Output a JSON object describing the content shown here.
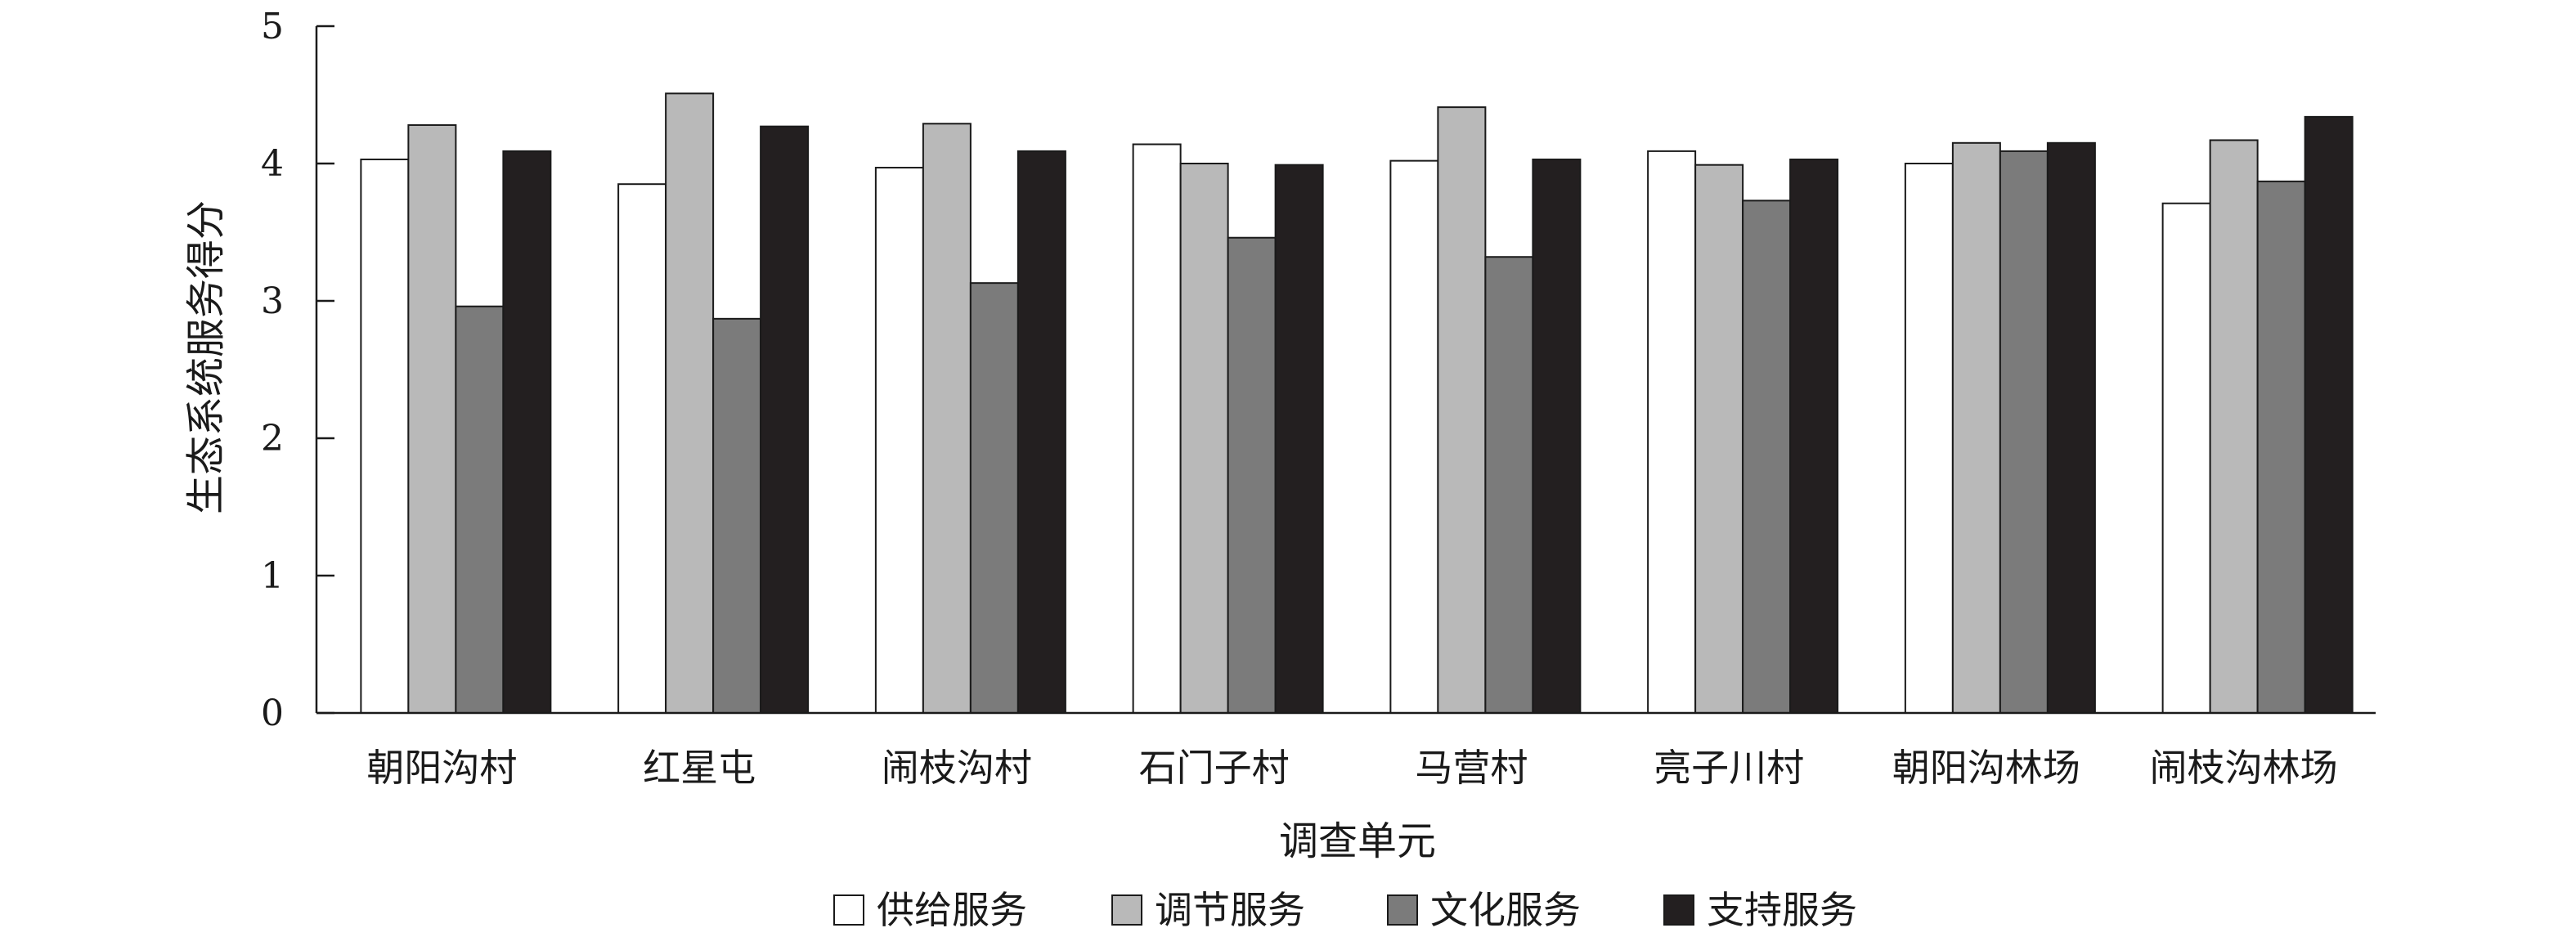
{
  "chart_data": {
    "type": "bar",
    "xlabel": "调查单元",
    "ylabel": "生态系统服务得分",
    "ylim": [
      0,
      5
    ],
    "yticks": [
      0,
      1,
      2,
      3,
      4,
      5
    ],
    "categories": [
      "朝阳沟村",
      "红星屯",
      "闹枝沟村",
      "石门子村",
      "马营村",
      "亮子川村",
      "朝阳沟林场",
      "闹枝沟林场"
    ],
    "series": [
      {
        "name": "供给服务",
        "color": "#ffffff",
        "values": [
          4.03,
          3.85,
          3.97,
          4.14,
          4.02,
          4.09,
          4.0,
          3.71
        ]
      },
      {
        "name": "调节服务",
        "color": "#b9b9b9",
        "values": [
          4.28,
          4.51,
          4.29,
          4.0,
          4.41,
          3.99,
          4.15,
          4.17
        ]
      },
      {
        "name": "文化服务",
        "color": "#7b7b7b",
        "values": [
          2.96,
          2.87,
          3.13,
          3.46,
          3.32,
          3.73,
          4.09,
          3.87
        ]
      },
      {
        "name": "支持服务",
        "color": "#231f20",
        "values": [
          4.09,
          4.27,
          4.09,
          3.99,
          4.03,
          4.03,
          4.15,
          4.34
        ]
      }
    ],
    "legend_position": "bottom",
    "grid": false
  }
}
